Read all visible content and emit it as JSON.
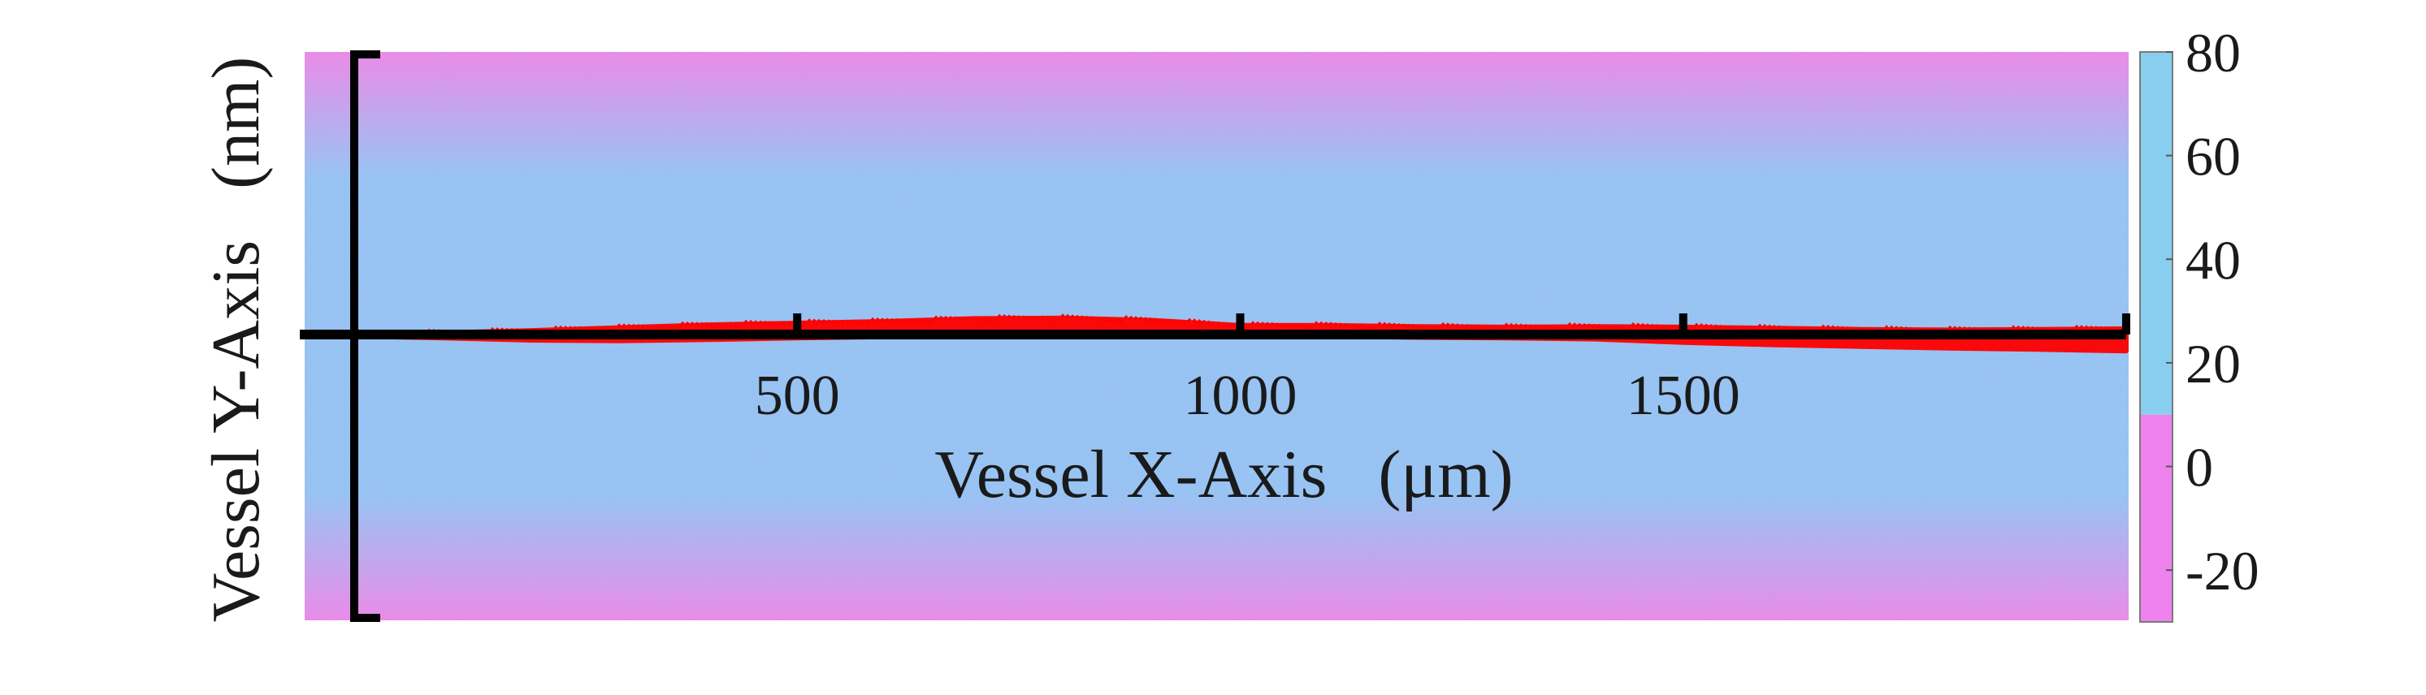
{
  "chart_data": {
    "type": "heatmap",
    "xlabel": "Vessel X-Axis   (μm)",
    "ylabel": "Vessel Y-Axis   (nm)",
    "x_ticks": [
      500,
      1000,
      1500
    ],
    "xlim": [
      0,
      2000
    ],
    "colorbar": {
      "ticks": [
        80,
        60,
        40,
        20,
        0,
        -20
      ],
      "range": [
        -30,
        80
      ],
      "split_value": 10,
      "colors": {
        "high": "#87ceef",
        "low": "#ee82ee"
      }
    },
    "background_colors": {
      "center": "#8ec4f2",
      "edge": "#e787e6"
    },
    "centerline": {
      "y": 0,
      "color": "#000000"
    },
    "trace": {
      "color": "#ff0000",
      "x": [
        0,
        100,
        200,
        300,
        400,
        500,
        600,
        700,
        800,
        900,
        1000,
        1100,
        1200,
        1300,
        1400,
        1500,
        1600,
        1700,
        1800,
        1900,
        2000
      ],
      "upper": [
        0.1,
        0.3,
        0.7,
        1.2,
        1.7,
        2.0,
        2.3,
        2.8,
        2.9,
        2.5,
        1.6,
        1.6,
        1.4,
        1.3,
        1.4,
        1.3,
        1.1,
        0.9,
        0.8,
        0.9,
        1.0
      ],
      "lower": [
        -0.3,
        -0.6,
        -1.0,
        -1.1,
        -0.9,
        -0.6,
        -0.4,
        -0.2,
        -0.1,
        -0.1,
        -0.2,
        -0.3,
        -0.5,
        -0.6,
        -0.8,
        -1.4,
        -1.8,
        -2.1,
        -2.4,
        -2.6,
        -2.9
      ]
    }
  }
}
